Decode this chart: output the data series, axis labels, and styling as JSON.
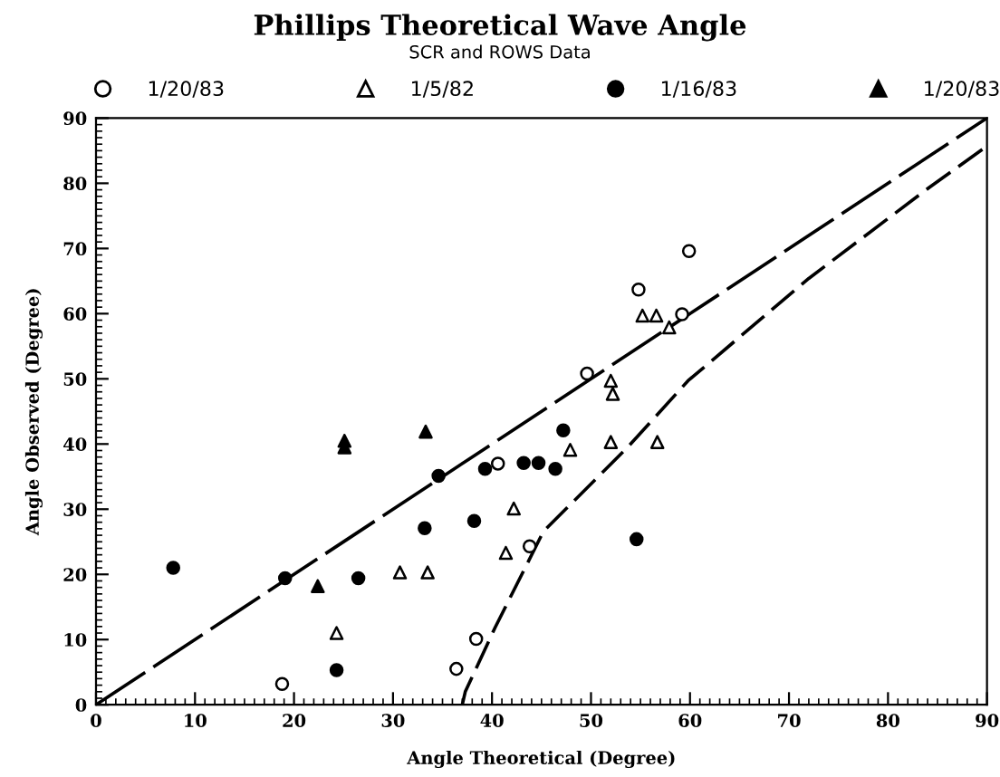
{
  "chart_data": {
    "type": "scatter",
    "title": "Phillips Theoretical Wave Angle",
    "subtitle": "SCR and ROWS Data",
    "xlabel": "Angle Theoretical (Degree)",
    "ylabel": "Angle Observed (Degree)",
    "xlim": [
      0,
      90
    ],
    "ylim": [
      0,
      90
    ],
    "xticks": [
      0,
      10,
      20,
      30,
      40,
      50,
      60,
      70,
      80,
      90
    ],
    "yticks": [
      0,
      10,
      20,
      30,
      40,
      50,
      60,
      70,
      80,
      90
    ],
    "grid": false,
    "legend": "top",
    "series": [
      {
        "name": "1/20/83",
        "color": "#ffffff",
        "marker": "circle",
        "x": [
          18.8,
          36.4,
          38.4,
          40.6,
          43.8,
          49.6,
          54.8,
          59.2,
          59.9
        ],
        "values": [
          3.2,
          5.5,
          10.1,
          37.0,
          24.3,
          50.8,
          63.7,
          59.9,
          69.6
        ]
      },
      {
        "name": "1/5/82",
        "color": "#ffffff",
        "marker": "triangle",
        "x": [
          24.3,
          30.7,
          33.5,
          41.4,
          42.2,
          47.9,
          52.0,
          52.0,
          52.2,
          55.2,
          56.6,
          56.7,
          57.9
        ],
        "values": [
          11.0,
          20.3,
          20.3,
          23.3,
          30.1,
          39.1,
          40.3,
          49.7,
          47.7,
          59.7,
          59.7,
          40.3,
          57.9
        ]
      },
      {
        "name": "1/16/83",
        "color": "#000000",
        "marker": "circle",
        "x": [
          7.8,
          19.1,
          24.3,
          26.5,
          33.2,
          34.6,
          38.2,
          39.3,
          43.2,
          44.7,
          46.4,
          47.2,
          54.6
        ],
        "values": [
          21.0,
          19.4,
          5.3,
          19.4,
          27.1,
          35.1,
          28.2,
          36.2,
          37.1,
          37.1,
          36.2,
          42.1,
          25.4
        ]
      },
      {
        "name": "1/20/83",
        "color": "#000000",
        "marker": "triangle",
        "x": [
          22.4,
          25.1,
          25.1,
          33.3
        ],
        "values": [
          18.2,
          40.5,
          39.5,
          41.9
        ]
      },
      {
        "type": "line",
        "color": "#000000",
        "marker": "none",
        "line_style": "dashed",
        "x": [
          0,
          90
        ],
        "values": [
          0,
          90
        ]
      },
      {
        "type": "line",
        "color": "#000000",
        "marker": "none",
        "line_style": "dashed",
        "x": [
          37.0,
          37.3,
          40.3,
          45.2,
          53.7,
          59.8,
          72.0,
          84.2,
          89.9
        ],
        "values": [
          0,
          2.0,
          11.8,
          26.6,
          39.5,
          49.7,
          65.4,
          79.4,
          85.6
        ]
      }
    ]
  }
}
